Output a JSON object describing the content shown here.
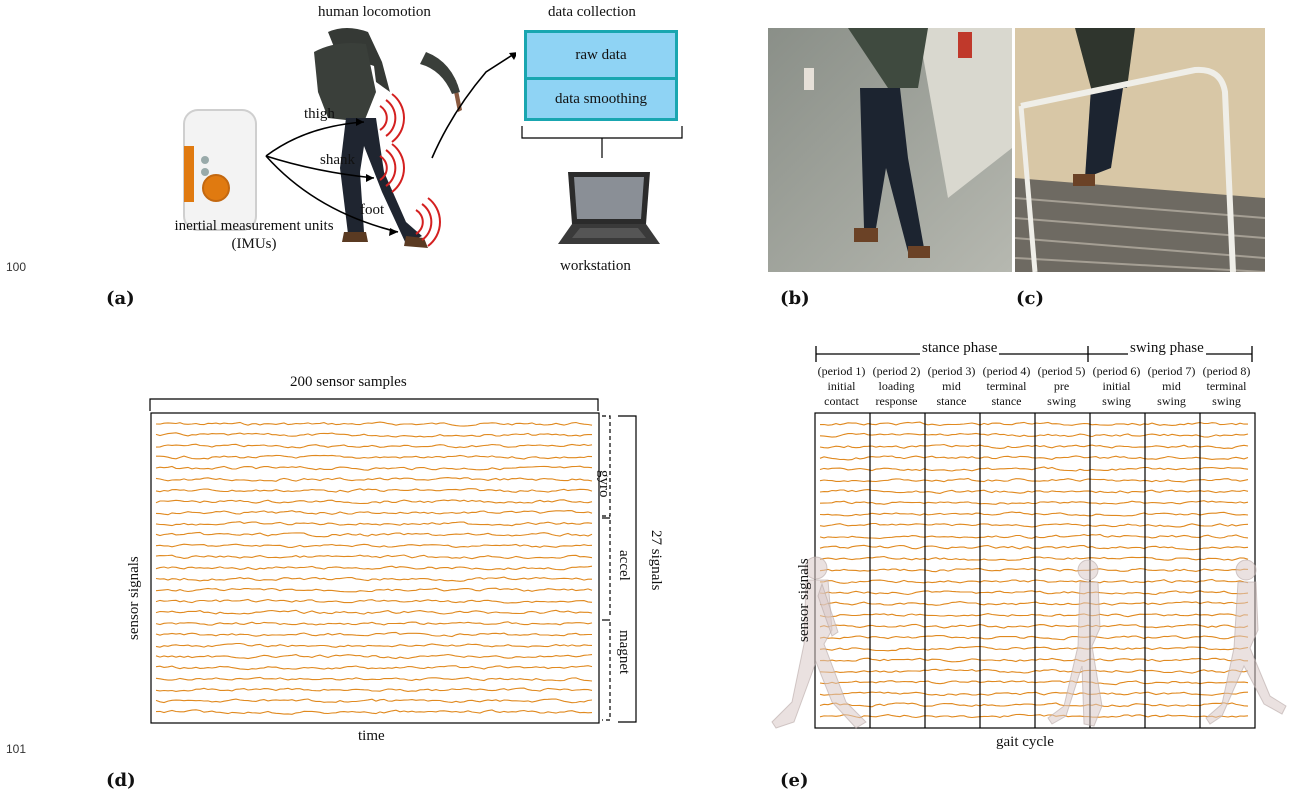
{
  "line_numbers": [
    "100",
    "101"
  ],
  "panel_labels": {
    "a": "(a)",
    "b": "(b)",
    "c": "(c)",
    "d": "(d)",
    "e": "(e)"
  },
  "panel_a": {
    "title_locomotion": "human locomotion",
    "title_collection": "data collection",
    "box_raw": "raw data",
    "box_smoothing": "data smoothing",
    "sensor_thigh": "thigh",
    "sensor_shank": "shank",
    "sensor_foot": "foot",
    "imu_label_line1": "inertial measurement units",
    "imu_label_line2": "(IMUs)",
    "workstation": "workstation",
    "colors": {
      "box_fill": "#8fd3f4",
      "box_border": "#19a6b0",
      "sensor_waves": "#d42020",
      "imu_button": "#e07a10"
    }
  },
  "panel_d": {
    "samples_label": "200 sensor samples",
    "signals_count": "27 signals",
    "groups": [
      "gyro",
      "accel",
      "magnet"
    ],
    "y_label": "sensor signals",
    "x_label": "time",
    "signal_color": "#e0891f"
  },
  "panel_e": {
    "phases": [
      "stance phase",
      "swing phase"
    ],
    "periods": [
      {
        "id": "(period 1)",
        "name1": "initial",
        "name2": "contact"
      },
      {
        "id": "(period 2)",
        "name1": "loading",
        "name2": "response"
      },
      {
        "id": "(period 3)",
        "name1": "mid",
        "name2": "stance"
      },
      {
        "id": "(period 4)",
        "name1": "terminal",
        "name2": "stance"
      },
      {
        "id": "(period 5)",
        "name1": "pre",
        "name2": "swing"
      },
      {
        "id": "(period 6)",
        "name1": "initial",
        "name2": "swing"
      },
      {
        "id": "(period 7)",
        "name1": "mid",
        "name2": "swing"
      },
      {
        "id": "(period 8)",
        "name1": "terminal",
        "name2": "swing"
      }
    ],
    "y_label": "sensor signals",
    "x_label": "gait cycle"
  }
}
